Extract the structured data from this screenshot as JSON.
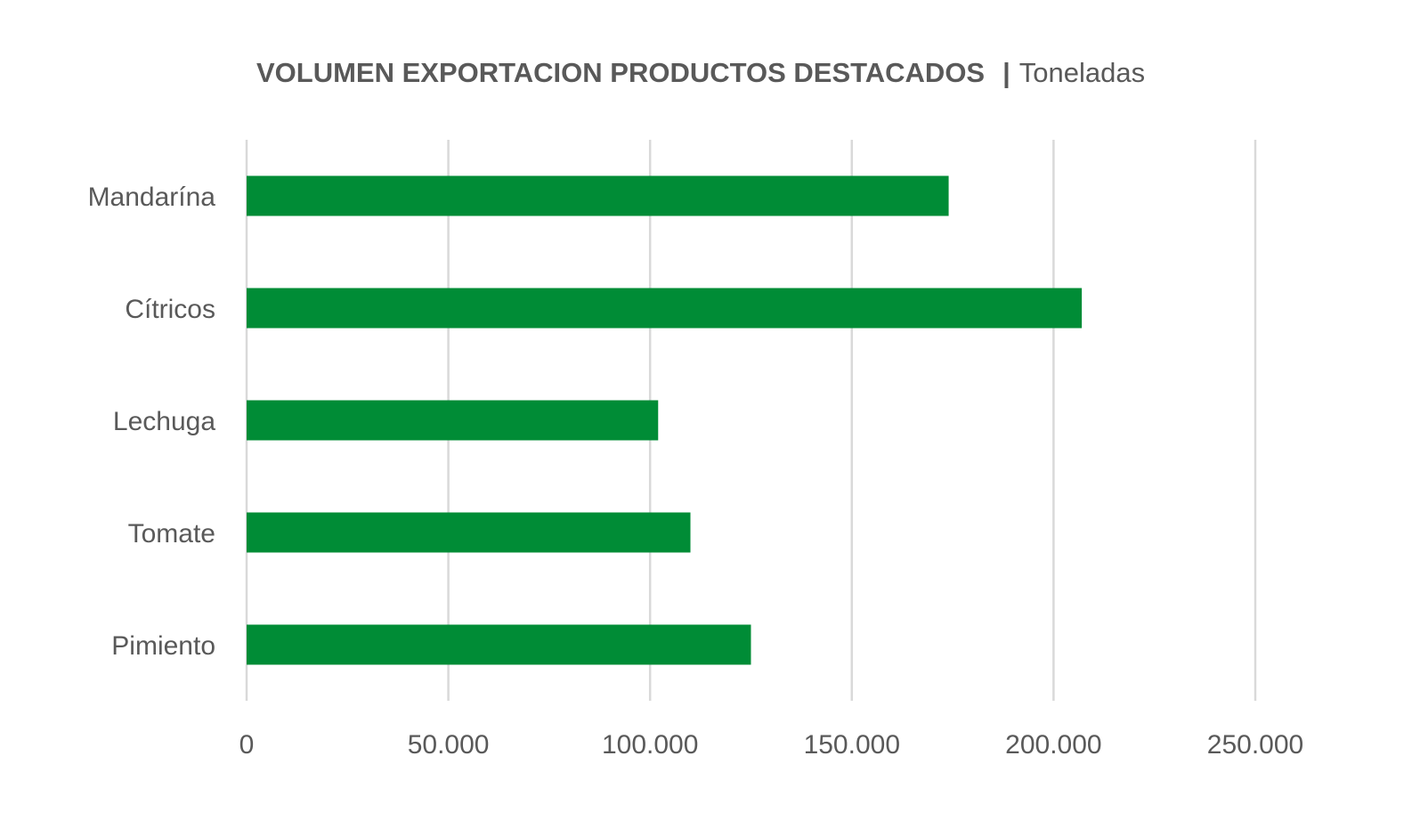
{
  "chart_data": {
    "type": "bar",
    "orientation": "horizontal",
    "title": "VOLUMEN EXPORTACION PRODUCTOS DESTACADOS",
    "title_separator": "|",
    "subtitle": "Toneladas",
    "categories": [
      "Mandarína",
      "Cítricos",
      "Lechuga",
      "Tomate",
      "Pimiento"
    ],
    "values": [
      174000,
      207000,
      102000,
      110000,
      125000
    ],
    "xlim": [
      0,
      250000
    ],
    "x_ticks": [
      0,
      50000,
      100000,
      150000,
      200000,
      250000
    ],
    "x_tick_labels": [
      "0",
      "50.000",
      "100.000",
      "150.000",
      "200.000",
      "250.000"
    ],
    "xlabel": "",
    "ylabel": "",
    "grid": "vertical",
    "legend": "none",
    "bar_color": "#008C36",
    "text_color": "#595959",
    "grid_color": "#D9D9D9"
  }
}
